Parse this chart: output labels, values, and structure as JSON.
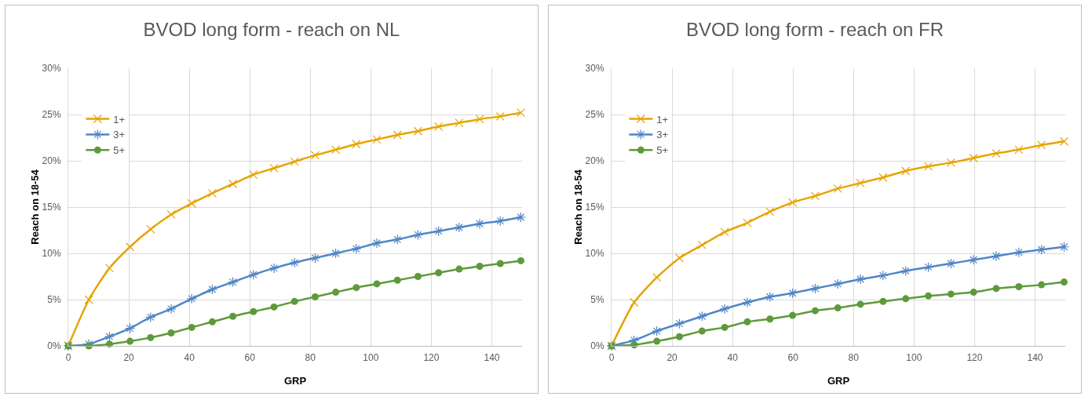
{
  "chart_data": [
    {
      "type": "line",
      "title": "BVOD long form - reach on NL",
      "xlabel": "GRP",
      "ylabel": "Reach on 18-54",
      "x": [
        0,
        6.8,
        13.6,
        20.4,
        27.2,
        34,
        40.8,
        47.6,
        54.4,
        61.2,
        68,
        74.8,
        81.6,
        88.4,
        95.2,
        102,
        108.8,
        115.6,
        122.4,
        129.2,
        136,
        142.8,
        149.6
      ],
      "series": [
        {
          "name": "1+",
          "color": "#e6a400",
          "marker": "cross",
          "values": [
            0,
            5.0,
            8.4,
            10.7,
            12.6,
            14.2,
            15.4,
            16.5,
            17.5,
            18.5,
            19.2,
            19.9,
            20.6,
            21.2,
            21.8,
            22.3,
            22.8,
            23.2,
            23.7,
            24.1,
            24.5,
            24.8,
            25.2
          ]
        },
        {
          "name": "3+",
          "color": "#4f86c6",
          "marker": "cross",
          "values": [
            0,
            0.2,
            1.0,
            1.9,
            3.1,
            4.0,
            5.1,
            6.1,
            6.9,
            7.7,
            8.4,
            9.0,
            9.5,
            10.0,
            10.5,
            11.1,
            11.5,
            12.0,
            12.4,
            12.8,
            13.2,
            13.5,
            13.9
          ]
        },
        {
          "name": "5+",
          "color": "#5e9a3a",
          "marker": "circle",
          "values": [
            0,
            0,
            0.2,
            0.5,
            0.9,
            1.4,
            2.0,
            2.6,
            3.2,
            3.7,
            4.2,
            4.8,
            5.3,
            5.8,
            6.3,
            6.7,
            7.1,
            7.5,
            7.9,
            8.3,
            8.6,
            8.9,
            9.2
          ]
        }
      ],
      "xlim": [
        0,
        150
      ],
      "xticks": [
        0,
        20,
        40,
        60,
        80,
        100,
        120,
        140
      ],
      "ylim": [
        0,
        30
      ],
      "yticks": [
        {
          "value": 0,
          "label": "0%"
        },
        {
          "value": 5,
          "label": "5%"
        },
        {
          "value": 10,
          "label": "10%"
        },
        {
          "value": 15,
          "label": "15%"
        },
        {
          "value": 20,
          "label": "20%"
        },
        {
          "value": 25,
          "label": "25%"
        },
        {
          "value": 30,
          "label": "30%"
        }
      ],
      "grid": true,
      "legend": "top left",
      "line_style": "solid"
    },
    {
      "type": "line",
      "title": "BVOD long form - reach on FR",
      "xlabel": "GRP",
      "ylabel": "Reach on 18-54",
      "x": [
        0,
        7.48,
        14.96,
        22.44,
        29.92,
        37.4,
        44.88,
        52.36,
        59.84,
        67.32,
        74.8,
        82.28,
        89.76,
        97.24,
        104.72,
        112.2,
        119.68,
        127.16,
        134.64,
        142.12,
        149.6
      ],
      "series": [
        {
          "name": "1+",
          "color": "#e6a400",
          "marker": "cross",
          "values": [
            0,
            4.7,
            7.4,
            9.5,
            10.9,
            12.3,
            13.3,
            14.5,
            15.5,
            16.2,
            17.0,
            17.6,
            18.2,
            18.9,
            19.4,
            19.8,
            20.3,
            20.8,
            21.2,
            21.7,
            22.1
          ]
        },
        {
          "name": "3+",
          "color": "#4f86c6",
          "marker": "cross",
          "values": [
            0,
            0.6,
            1.6,
            2.4,
            3.2,
            4.0,
            4.7,
            5.3,
            5.7,
            6.2,
            6.7,
            7.2,
            7.6,
            8.1,
            8.5,
            8.9,
            9.3,
            9.7,
            10.1,
            10.4,
            10.7
          ]
        },
        {
          "name": "5+",
          "color": "#5e9a3a",
          "marker": "circle",
          "values": [
            0,
            0.1,
            0.5,
            1.0,
            1.6,
            2.0,
            2.6,
            2.9,
            3.3,
            3.8,
            4.1,
            4.5,
            4.8,
            5.1,
            5.4,
            5.6,
            5.8,
            6.2,
            6.4,
            6.6,
            6.9
          ]
        }
      ],
      "xlim": [
        0,
        150
      ],
      "xticks": [
        0,
        20,
        40,
        60,
        80,
        100,
        120,
        140
      ],
      "ylim": [
        0,
        30
      ],
      "yticks": [
        {
          "value": 0,
          "label": "0%"
        },
        {
          "value": 5,
          "label": "5%"
        },
        {
          "value": 10,
          "label": "10%"
        },
        {
          "value": 15,
          "label": "15%"
        },
        {
          "value": 20,
          "label": "20%"
        },
        {
          "value": 25,
          "label": "25%"
        },
        {
          "value": 30,
          "label": "30%"
        }
      ],
      "grid": true,
      "legend": "top left",
      "line_style": "solid"
    }
  ]
}
